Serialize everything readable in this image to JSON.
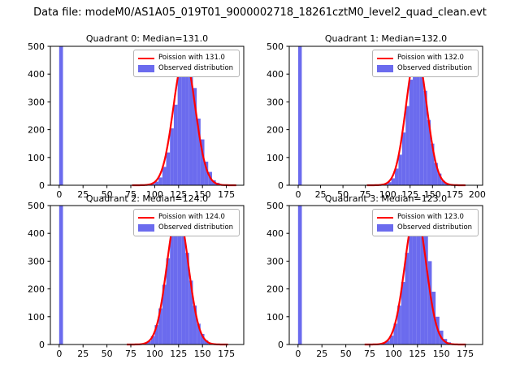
{
  "suptitle": "Data file: modeM0/AS1A05_019T01_9000002718_18261cztM0_level2_quad_clean.evt",
  "colors": {
    "bar": "#6b6bee",
    "fit_line": "#ff0000",
    "axes": "#000000"
  },
  "chart_data": [
    {
      "type": "bar",
      "title": "Quadrant 0: Median=131.0",
      "median": 131.0,
      "bin_width": 4,
      "counts": [
        3000,
        0,
        0,
        0,
        0,
        0,
        0,
        0,
        0,
        0,
        0,
        0,
        0,
        0,
        0,
        0,
        0,
        0,
        0,
        0,
        0,
        0,
        1,
        3,
        5,
        13,
        28,
        66,
        118,
        205,
        290,
        395,
        455,
        470,
        420,
        350,
        240,
        165,
        85,
        48,
        18,
        9,
        3,
        1,
        1,
        0
      ],
      "fit": {
        "mu": 131.0,
        "sigma": 11.4,
        "amp": 465
      },
      "xlim": [
        -9.2,
        193.2
      ],
      "ylim": [
        0,
        500
      ],
      "xticks": [
        0,
        25,
        50,
        75,
        100,
        125,
        150,
        175
      ],
      "yticks": [
        0,
        100,
        200,
        300,
        400,
        500
      ],
      "legend": {
        "line": "Poission with 131.0",
        "patch": "Observed distribution"
      }
    },
    {
      "type": "bar",
      "title": "Quadrant 1: Median=132.0",
      "median": 132.0,
      "bin_width": 4,
      "counts": [
        3000,
        0,
        0,
        0,
        0,
        0,
        0,
        0,
        0,
        0,
        0,
        0,
        0,
        0,
        0,
        0,
        0,
        0,
        0,
        0,
        0,
        0,
        1,
        2,
        4,
        11,
        25,
        60,
        110,
        190,
        285,
        380,
        450,
        480,
        430,
        340,
        235,
        150,
        80,
        42,
        16,
        7,
        2,
        1,
        0,
        0,
        0,
        0,
        0,
        0
      ],
      "fit": {
        "mu": 132.0,
        "sigma": 11.5,
        "amp": 475
      },
      "xlim": [
        -10,
        206
      ],
      "ylim": [
        0,
        500
      ],
      "xticks": [
        0,
        25,
        50,
        75,
        100,
        125,
        150,
        175,
        200
      ],
      "yticks": [
        0,
        100,
        200,
        300,
        400,
        500
      ],
      "legend": {
        "line": "Poission with 132.0",
        "patch": "Observed distribution"
      }
    },
    {
      "type": "bar",
      "title": "Quadrant 2: Median=124.0",
      "median": 124.0,
      "bin_width": 4,
      "counts": [
        3000,
        0,
        0,
        0,
        0,
        0,
        0,
        0,
        0,
        0,
        0,
        0,
        0,
        0,
        0,
        0,
        0,
        0,
        0,
        0,
        1,
        3,
        6,
        12,
        30,
        70,
        130,
        215,
        310,
        400,
        480,
        470,
        430,
        330,
        230,
        140,
        75,
        38,
        15,
        6,
        2,
        1,
        0,
        0,
        0,
        0
      ],
      "fit": {
        "mu": 124.0,
        "sigma": 11.1,
        "amp": 480
      },
      "xlim": [
        -9.2,
        193.2
      ],
      "ylim": [
        0,
        500
      ],
      "xticks": [
        0,
        25,
        50,
        75,
        100,
        125,
        150,
        175
      ],
      "yticks": [
        0,
        100,
        200,
        300,
        400,
        500
      ],
      "legend": {
        "line": "Poission with 124.0",
        "patch": "Observed distribution"
      }
    },
    {
      "type": "bar",
      "title": "Quadrant 3: Median=123.0",
      "median": 123.0,
      "bin_width": 4,
      "counts": [
        3000,
        0,
        0,
        0,
        0,
        0,
        0,
        0,
        0,
        0,
        0,
        0,
        0,
        0,
        0,
        0,
        0,
        0,
        0,
        0,
        1,
        3,
        6,
        14,
        32,
        75,
        140,
        225,
        330,
        440,
        470,
        430,
        465,
        420,
        300,
        190,
        100,
        50,
        20,
        8,
        3,
        1,
        0,
        0,
        0,
        0
      ],
      "fit": {
        "mu": 123.0,
        "sigma": 11.1,
        "amp": 480
      },
      "xlim": [
        -9.2,
        193.2
      ],
      "ylim": [
        0,
        500
      ],
      "xticks": [
        0,
        25,
        50,
        75,
        100,
        125,
        150,
        175
      ],
      "yticks": [
        0,
        100,
        200,
        300,
        400,
        500
      ],
      "legend": {
        "line": "Poission with 123.0",
        "patch": "Observed distribution"
      }
    }
  ]
}
